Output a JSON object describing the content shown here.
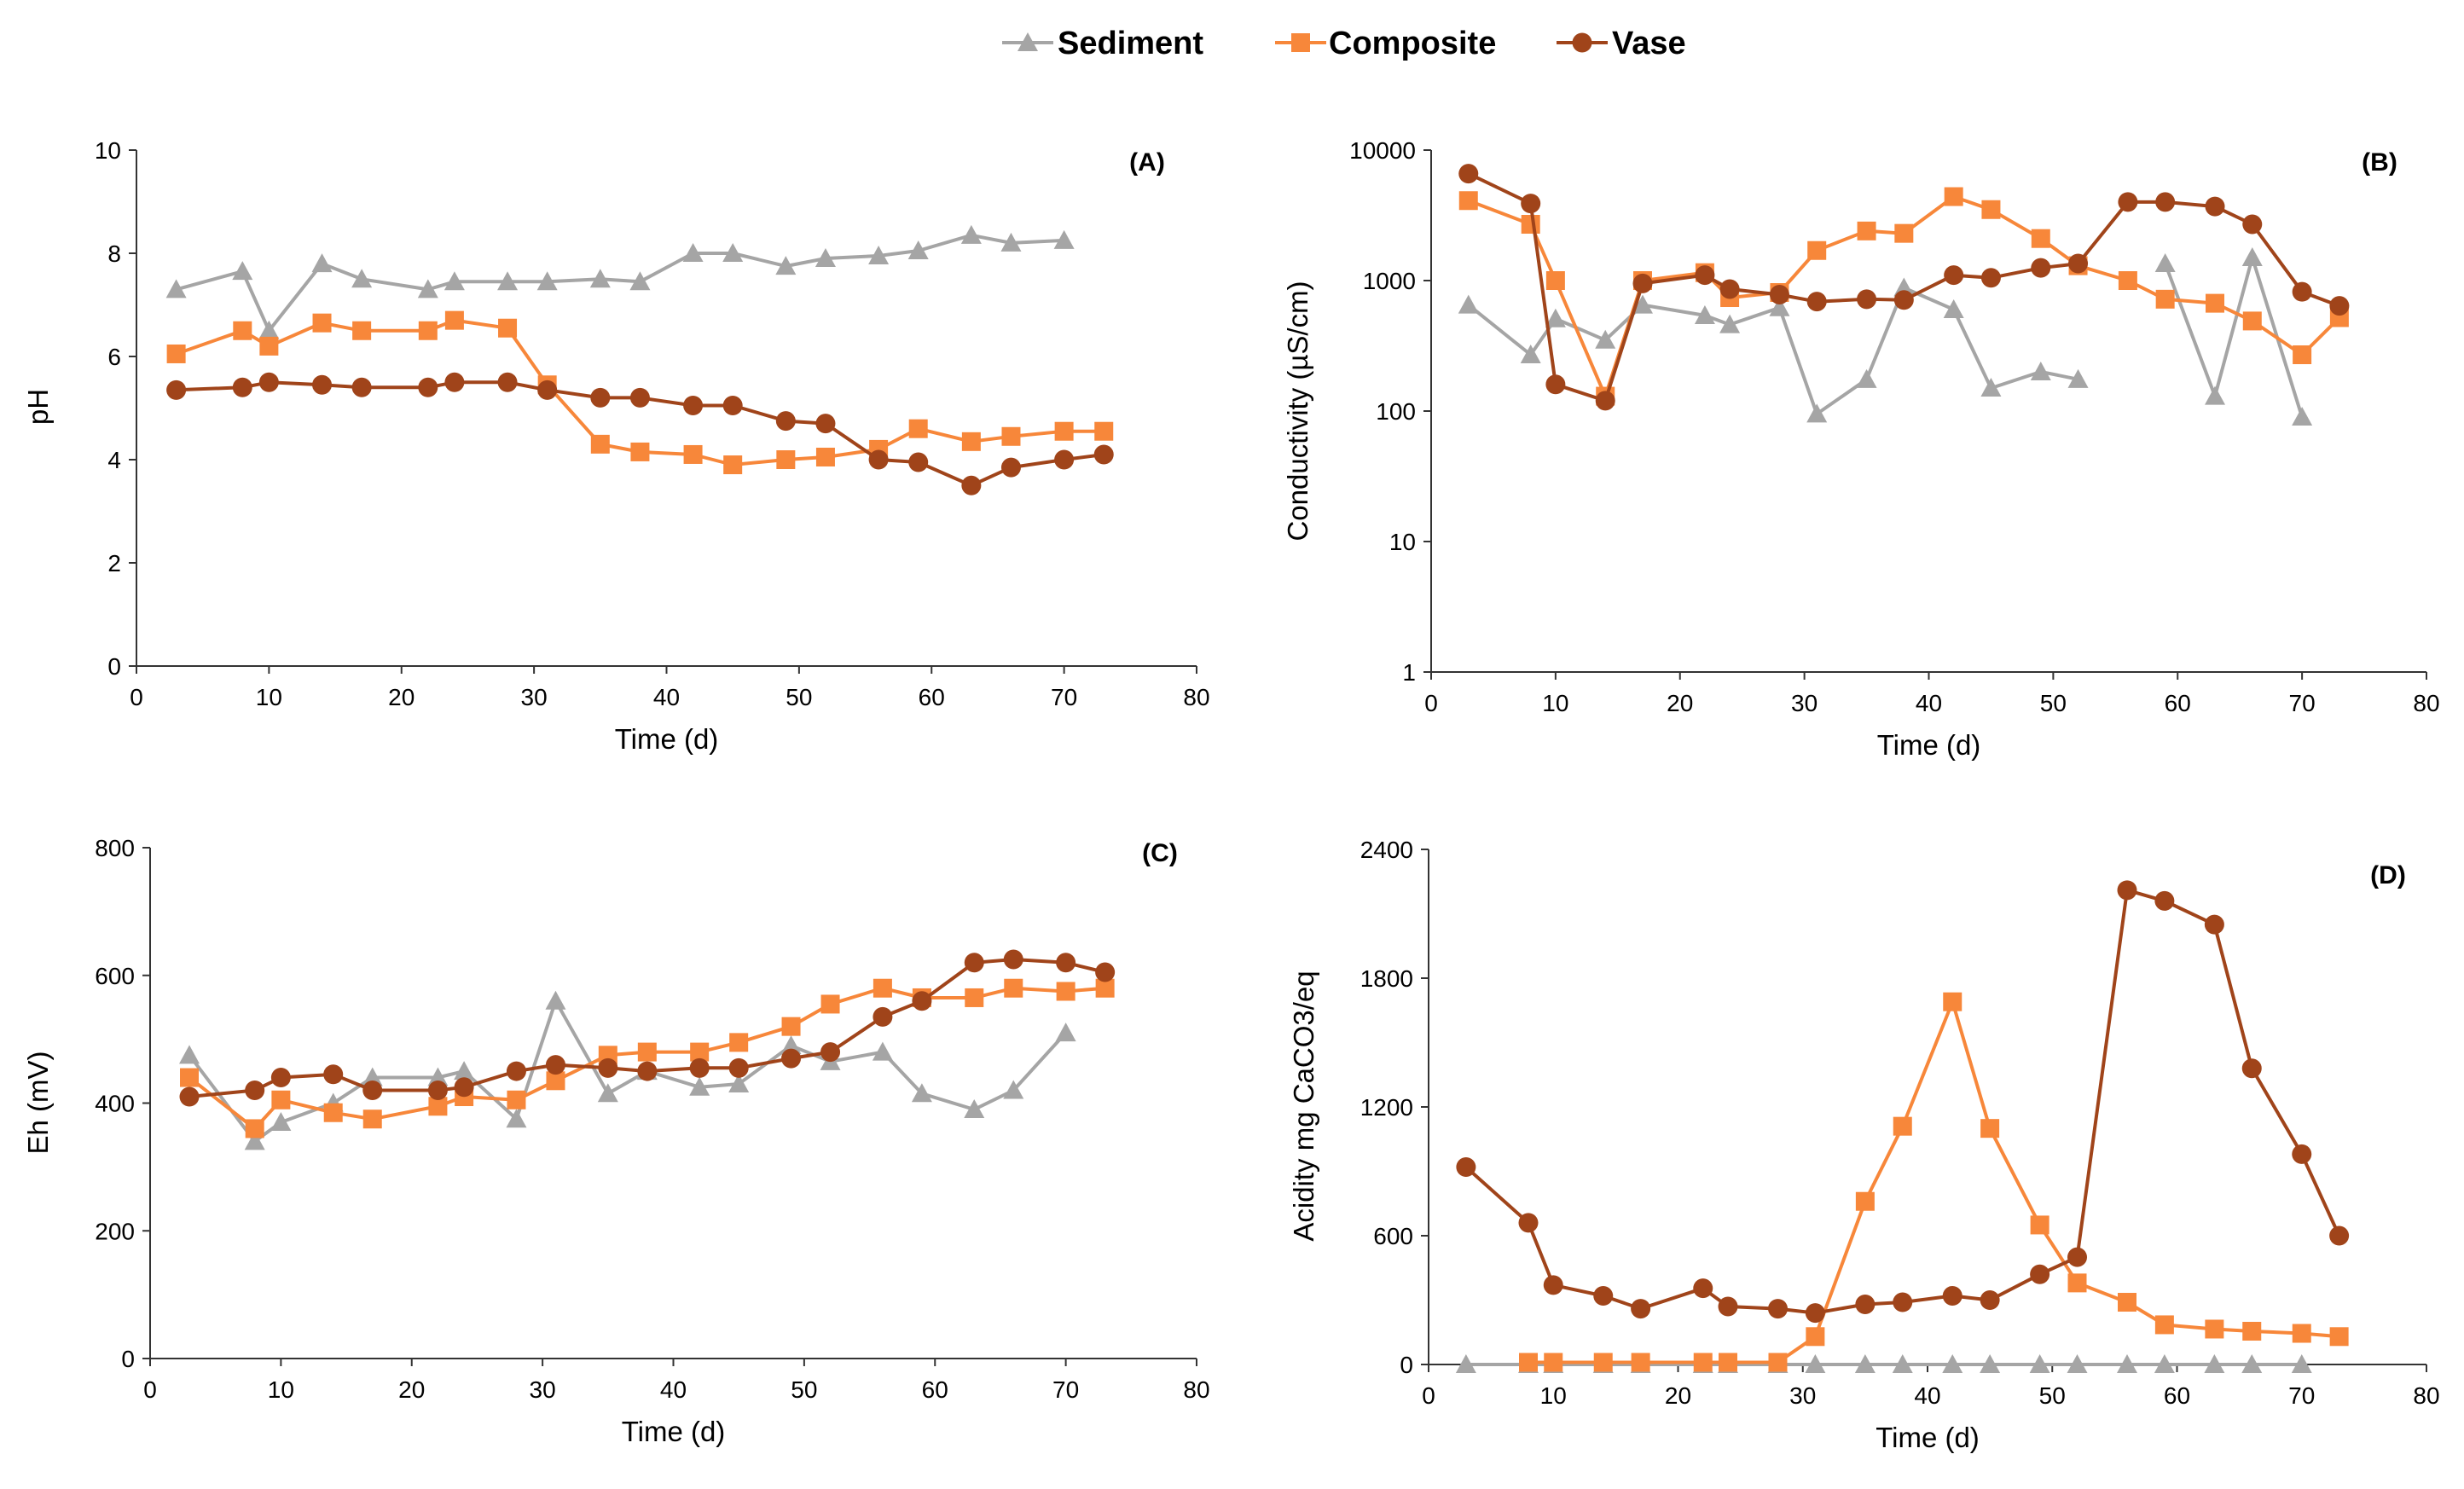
{
  "legend": {
    "items": [
      {
        "name": "Sediment",
        "color": "#a5a5a5",
        "marker": "triangle"
      },
      {
        "name": "Composite",
        "color": "#f7873a",
        "marker": "square"
      },
      {
        "name": "Vase",
        "color": "#a0441a",
        "marker": "circle"
      }
    ]
  },
  "chart_data": [
    {
      "id": "A",
      "type": "line",
      "panel_label": "(A)",
      "xlabel": "Time (d)",
      "ylabel": "pH",
      "xlim": [
        0,
        80
      ],
      "ylim": [
        0,
        10
      ],
      "yscale": "linear",
      "xticks": [
        0,
        10,
        20,
        30,
        40,
        50,
        60,
        70,
        80
      ],
      "yticks": [
        0,
        2,
        4,
        6,
        8,
        10
      ],
      "ytick_labels": [
        "0",
        "2",
        "4",
        "6",
        "8",
        "10"
      ],
      "series": [
        {
          "name": "Sediment",
          "x": [
            3,
            8,
            10,
            14,
            17,
            22,
            24,
            28,
            31,
            35,
            38,
            42,
            45,
            49,
            52,
            56,
            59,
            63,
            66,
            70
          ],
          "y": [
            7.3,
            7.65,
            6.5,
            7.8,
            7.5,
            7.3,
            7.45,
            7.45,
            7.45,
            7.5,
            7.45,
            8.0,
            8.0,
            7.75,
            7.9,
            7.95,
            8.05,
            8.35,
            8.2,
            8.25
          ]
        },
        {
          "name": "Composite",
          "x": [
            3,
            8,
            10,
            14,
            17,
            22,
            24,
            28,
            31,
            35,
            38,
            42,
            45,
            49,
            52,
            56,
            59,
            63,
            66,
            70,
            73
          ],
          "y": [
            6.05,
            6.5,
            6.2,
            6.65,
            6.5,
            6.5,
            6.7,
            6.55,
            5.45,
            4.3,
            4.15,
            4.1,
            3.9,
            4.0,
            4.05,
            4.2,
            4.6,
            4.35,
            4.45,
            4.55,
            4.55
          ]
        },
        {
          "name": "Vase",
          "x": [
            3,
            8,
            10,
            14,
            17,
            22,
            24,
            28,
            31,
            35,
            38,
            42,
            45,
            49,
            52,
            56,
            59,
            63,
            66,
            70,
            73
          ],
          "y": [
            5.35,
            5.4,
            5.5,
            5.45,
            5.4,
            5.4,
            5.5,
            5.5,
            5.35,
            5.2,
            5.2,
            5.05,
            5.05,
            4.75,
            4.7,
            4.0,
            3.95,
            3.5,
            3.85,
            4.0,
            4.1
          ]
        }
      ]
    },
    {
      "id": "B",
      "type": "line",
      "panel_label": "(B)",
      "xlabel": "Time (d)",
      "ylabel": "Conductivity (µS/cm)",
      "xlim": [
        0,
        80
      ],
      "ylim": [
        1,
        10000
      ],
      "yscale": "log",
      "xticks": [
        0,
        10,
        20,
        30,
        40,
        50,
        60,
        70,
        80
      ],
      "yticks": [
        1,
        10,
        100,
        1000,
        10000
      ],
      "ytick_labels": [
        "1",
        "10",
        "100",
        "1000",
        "10000"
      ],
      "series": [
        {
          "name": "Sediment",
          "x": [
            3,
            8,
            10,
            14,
            17,
            22,
            24,
            28,
            31,
            35,
            38,
            42,
            45,
            49,
            52
          ],
          "y": [
            650,
            270,
            510,
            350,
            650,
            540,
            460,
            620,
            95,
            175,
            880,
            600,
            150,
            200,
            175
          ],
          "x2": [
            59,
            63,
            66,
            70
          ],
          "y2": [
            1350,
            130,
            1500,
            90
          ]
        },
        {
          "name": "Composite",
          "x": [
            3,
            8,
            10,
            14,
            17,
            22,
            24,
            28,
            31,
            35,
            38,
            42,
            45,
            49,
            52,
            56,
            59,
            63,
            66,
            70,
            73
          ],
          "y": [
            4100,
            2700,
            1000,
            130,
            1000,
            1150,
            740,
            810,
            1700,
            2400,
            2300,
            4400,
            3500,
            2100,
            1300,
            1000,
            720,
            670,
            490,
            270,
            520
          ]
        },
        {
          "name": "Vase",
          "x": [
            3,
            8,
            10,
            14,
            17,
            22,
            24,
            28,
            31,
            35,
            38,
            42,
            45,
            49,
            52,
            56,
            59,
            63,
            66,
            70,
            73
          ],
          "y": [
            6600,
            3900,
            160,
            120,
            950,
            1100,
            860,
            780,
            690,
            720,
            710,
            1100,
            1050,
            1250,
            1350,
            4000,
            4000,
            3700,
            2700,
            820,
            640
          ]
        }
      ]
    },
    {
      "id": "C",
      "type": "line",
      "panel_label": "(C)",
      "xlabel": "Time (d)",
      "ylabel": "Eh (mV)",
      "xlim": [
        0,
        80
      ],
      "ylim": [
        0,
        800
      ],
      "yscale": "linear",
      "xticks": [
        0,
        10,
        20,
        30,
        40,
        50,
        60,
        70,
        80
      ],
      "yticks": [
        0,
        200,
        400,
        600,
        800
      ],
      "ytick_labels": [
        "0",
        "200",
        "400",
        "600",
        "800"
      ],
      "series": [
        {
          "name": "Sediment",
          "x": [
            3,
            8,
            10,
            14,
            17,
            22,
            24,
            28,
            31,
            35,
            38,
            42,
            45,
            49,
            52,
            56,
            59,
            63,
            66,
            70
          ],
          "y": [
            475,
            340,
            370,
            400,
            440,
            440,
            450,
            375,
            560,
            415,
            450,
            425,
            430,
            490,
            465,
            480,
            415,
            390,
            420,
            510
          ]
        },
        {
          "name": "Composite",
          "x": [
            3,
            8,
            10,
            14,
            17,
            22,
            24,
            28,
            31,
            35,
            38,
            42,
            45,
            49,
            52,
            56,
            59,
            63,
            66,
            70,
            73
          ],
          "y": [
            440,
            360,
            405,
            385,
            375,
            395,
            410,
            405,
            435,
            475,
            480,
            480,
            495,
            520,
            555,
            580,
            565,
            565,
            580,
            575,
            580
          ]
        },
        {
          "name": "Vase",
          "x": [
            3,
            8,
            10,
            14,
            17,
            22,
            24,
            28,
            31,
            35,
            38,
            42,
            45,
            49,
            52,
            56,
            59,
            63,
            66,
            70,
            73
          ],
          "y": [
            410,
            420,
            440,
            445,
            420,
            420,
            425,
            450,
            460,
            455,
            450,
            455,
            455,
            470,
            480,
            535,
            560,
            620,
            625,
            620,
            605
          ]
        }
      ]
    },
    {
      "id": "D",
      "type": "line",
      "panel_label": "(D)",
      "xlabel": "Time (d)",
      "ylabel": "Acidity mg CaCO3/eq",
      "xlim": [
        0,
        80
      ],
      "ylim": [
        0,
        2400
      ],
      "yscale": "linear",
      "xticks": [
        0,
        10,
        20,
        30,
        40,
        50,
        60,
        70,
        80
      ],
      "yticks": [
        0,
        600,
        1200,
        1800,
        2400
      ],
      "ytick_labels": [
        "0",
        "600",
        "1200",
        "1800",
        "2400"
      ],
      "series": [
        {
          "name": "Sediment",
          "x": [
            3,
            8,
            10,
            14,
            17,
            22,
            24,
            28,
            31,
            35,
            38,
            42,
            45,
            49,
            52,
            56,
            59,
            63,
            66,
            70
          ],
          "y": [
            0,
            0,
            0,
            0,
            0,
            0,
            0,
            0,
            0,
            0,
            0,
            0,
            0,
            0,
            0,
            0,
            0,
            0,
            0,
            0
          ]
        },
        {
          "name": "Composite",
          "x": [
            8,
            10,
            14,
            17,
            22,
            24,
            28,
            31,
            35,
            38,
            42,
            45,
            49,
            52,
            56,
            59,
            63,
            66,
            70,
            73
          ],
          "y": [
            10,
            10,
            10,
            10,
            10,
            10,
            10,
            130,
            760,
            1110,
            1690,
            1100,
            650,
            380,
            290,
            185,
            165,
            155,
            145,
            130
          ]
        },
        {
          "name": "Vase",
          "x": [
            3,
            8,
            10,
            14,
            17,
            22,
            24,
            28,
            31,
            35,
            38,
            42,
            45,
            49,
            52,
            56,
            59,
            63,
            66,
            70,
            73
          ],
          "y": [
            920,
            660,
            370,
            320,
            260,
            355,
            270,
            260,
            240,
            280,
            290,
            320,
            300,
            420,
            500,
            2210,
            2160,
            2050,
            1380,
            980,
            600
          ]
        }
      ]
    }
  ]
}
